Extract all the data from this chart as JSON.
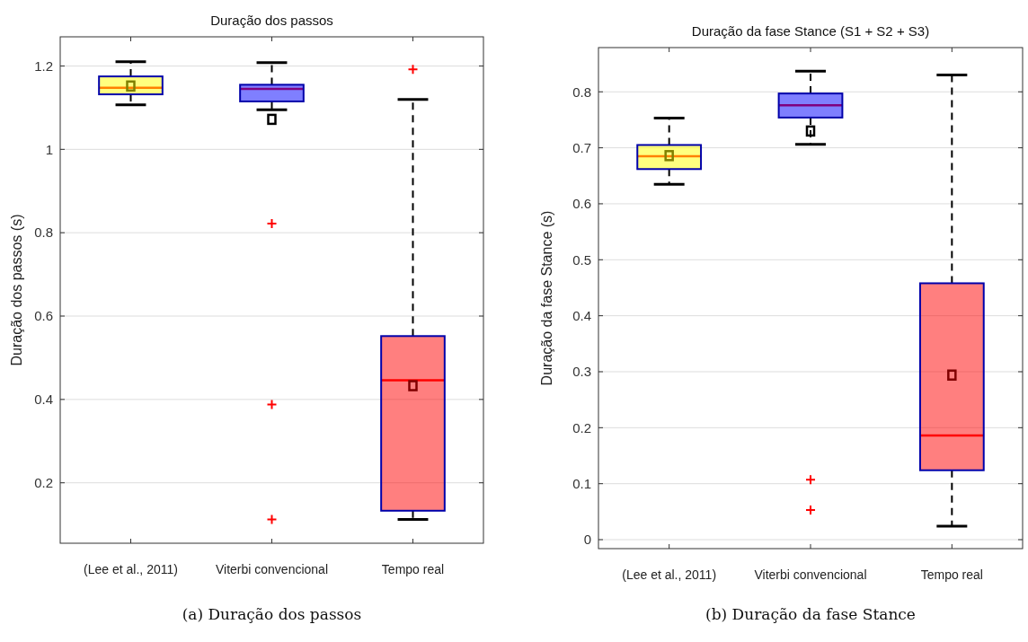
{
  "chart_data": [
    {
      "type": "box",
      "title": "Duração dos passos",
      "ylabel": "Duração dos passos (s)",
      "categories": [
        "(Lee et al., 2011)",
        "Viterbi convencional",
        "Tempo real"
      ],
      "colors": [
        "#ffff00",
        "#0000ff",
        "#ff0000"
      ],
      "ylim": [
        0.055,
        1.27
      ],
      "yticks": [
        {
          "value": 0.2,
          "label": "0.2"
        },
        {
          "value": 0.4,
          "label": "0.4"
        },
        {
          "value": 0.6,
          "label": "0.6"
        },
        {
          "value": 0.8,
          "label": "0.8"
        },
        1,
        {
          "value": 1.2,
          "label": "1.2"
        }
      ],
      "grid": "y",
      "annotations": [
        "(a) Duração dos passos"
      ],
      "boxes": [
        {
          "low": 1.107,
          "q1": 1.132,
          "median": 1.148,
          "q3": 1.175,
          "high": 1.21,
          "mean": 1.152
        },
        {
          "low": 1.095,
          "q1": 1.115,
          "median": 1.145,
          "q3": 1.155,
          "high": 1.208,
          "mean": 1.072,
          "outliers": [
            0.822,
            0.388,
            0.112
          ]
        },
        {
          "low": 0.112,
          "q1": 0.133,
          "median": 0.446,
          "q3": 0.552,
          "high": 1.12,
          "mean": 0.433,
          "outliers": [
            1.192
          ]
        }
      ]
    },
    {
      "type": "box",
      "title": "Duração da fase Stance (S1 + S2 + S3)",
      "ylabel": "Duração da fase Stance (s)",
      "categories": [
        "(Lee et al., 2011)",
        "Viterbi convencional",
        "Tempo real"
      ],
      "colors": [
        "#ffff00",
        "#0000ff",
        "#ff0000"
      ],
      "ylim": [
        -0.016,
        0.879
      ],
      "yticks": [
        0,
        {
          "value": 0.1,
          "label": "0.1"
        },
        {
          "value": 0.2,
          "label": "0.2"
        },
        {
          "value": 0.3,
          "label": "0.3"
        },
        {
          "value": 0.4,
          "label": "0.4"
        },
        {
          "value": 0.5,
          "label": "0.5"
        },
        {
          "value": 0.6,
          "label": "0.6"
        },
        {
          "value": 0.7,
          "label": "0.7"
        },
        {
          "value": 0.8,
          "label": "0.8"
        }
      ],
      "grid": "y",
      "annotations": [
        "(b) Duração da fase Stance"
      ],
      "boxes": [
        {
          "low": 0.635,
          "q1": 0.662,
          "median": 0.685,
          "q3": 0.705,
          "high": 0.753,
          "mean": 0.686
        },
        {
          "low": 0.706,
          "q1": 0.754,
          "median": 0.776,
          "q3": 0.797,
          "high": 0.837,
          "mean": 0.73,
          "outliers": [
            0.107,
            0.053
          ]
        },
        {
          "low": 0.024,
          "q1": 0.124,
          "median": 0.186,
          "q3": 0.458,
          "high": 0.83,
          "mean": 0.294
        }
      ]
    }
  ]
}
